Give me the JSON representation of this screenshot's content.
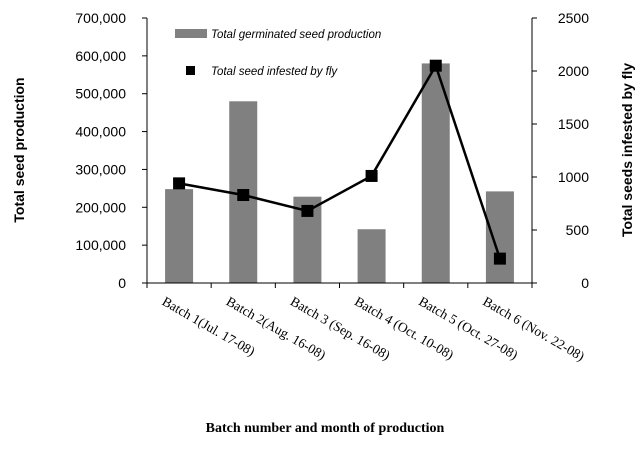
{
  "chart_data": {
    "type": "bar",
    "categories": [
      "Batch 1(Jul. 17-08)",
      "Batch 2(Aug. 16-08)",
      "Batch 3 (Sep. 16-08)",
      "Batch 4 (Oct. 10-08)",
      "Batch 5 (Oct. 27-08)",
      "Batch 6 (Nov. 22-08)"
    ],
    "series": [
      {
        "name": "Total germinated seed production",
        "type": "bar",
        "axis": "left",
        "color": "#808080",
        "values": [
          248000,
          480000,
          228000,
          142000,
          580000,
          242000
        ]
      },
      {
        "name": "Total seed infested by fly",
        "type": "line",
        "axis": "right",
        "color": "#000000",
        "marker": "square",
        "values": [
          940,
          830,
          680,
          1010,
          2050,
          230
        ]
      }
    ],
    "ylabel": "Total seed production",
    "y2label": "Total  seeds infested by fly",
    "xlabel": "Batch number and month of production",
    "ylim": [
      0,
      700000
    ],
    "y2lim": [
      0,
      2500
    ],
    "yticks": [
      "0",
      "100,000",
      "200,000",
      "300,000",
      "400,000",
      "500,000",
      "600,000",
      "700,000"
    ],
    "y2ticks": [
      "0",
      "500",
      "1000",
      "1500",
      "2000",
      "2500"
    ],
    "legend_position": "top-center"
  }
}
